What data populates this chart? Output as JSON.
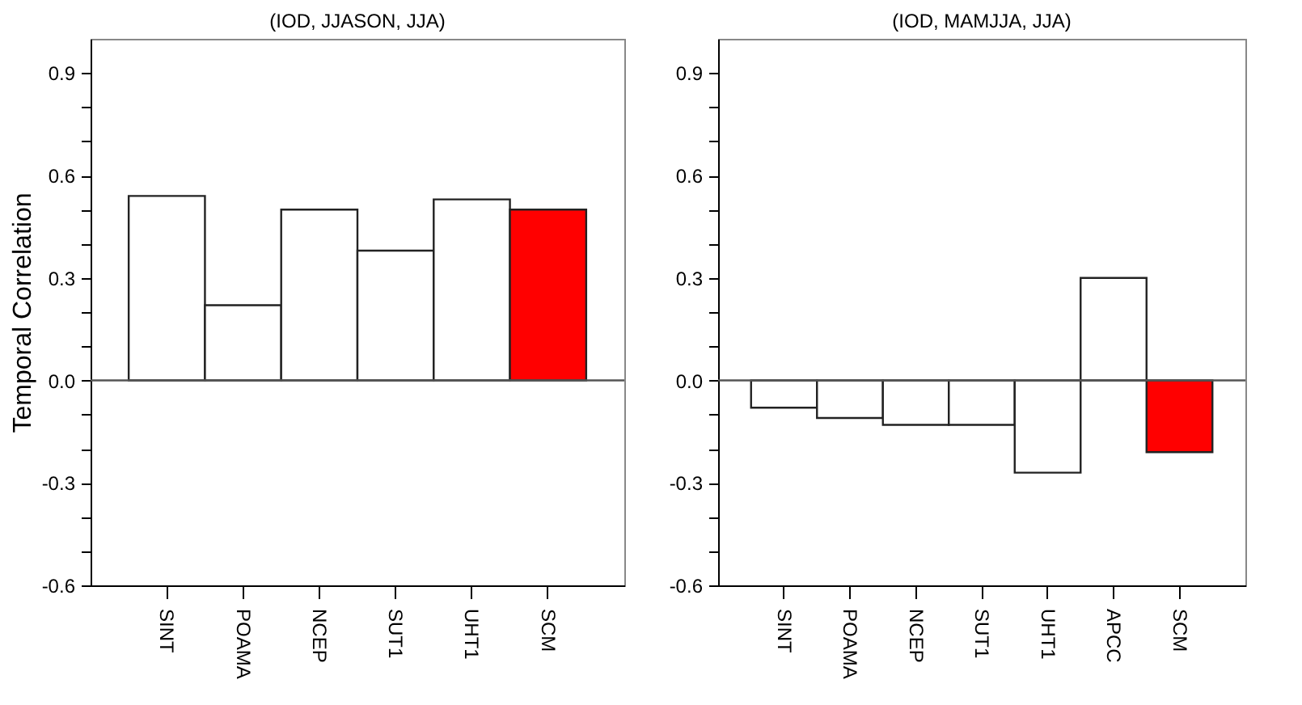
{
  "chart_data": [
    {
      "type": "bar",
      "title": "(IOD, JJASON, JJA)",
      "ylabel": "Temporal Correlation",
      "categories": [
        "SINT",
        "POAMA",
        "NCEP",
        "SUT1",
        "UHT1",
        "SCM"
      ],
      "values": [
        0.54,
        0.22,
        0.5,
        0.38,
        0.53,
        0.5
      ],
      "colors": [
        "#ffffff",
        "#ffffff",
        "#ffffff",
        "#ffffff",
        "#ffffff",
        "#ff0000"
      ],
      "ylim": [
        -0.6,
        1.0
      ],
      "yticks": [
        -0.6,
        {
          "value": -0.5,
          "label": null
        },
        {
          "value": -0.4,
          "label": null
        },
        -0.3,
        {
          "value": -0.2,
          "label": null
        },
        {
          "value": -0.1,
          "label": null
        },
        {
          "value": 0,
          "label": "0.0"
        },
        {
          "value": 0.1,
          "label": null
        },
        {
          "value": 0.2,
          "label": null
        },
        0.3,
        {
          "value": 0.4,
          "label": null
        },
        {
          "value": 0.5,
          "label": null
        },
        0.6,
        {
          "value": 0.7,
          "label": null
        },
        {
          "value": 0.8,
          "label": null
        },
        0.9
      ],
      "ref_lines": [
        {
          "axis": "y",
          "value": 0
        }
      ]
    },
    {
      "type": "bar",
      "title": "(IOD, MAMJJA, JJA)",
      "categories": [
        "SINT",
        "POAMA",
        "NCEP",
        "SUT1",
        "UHT1",
        "APCC",
        "SCM"
      ],
      "values": [
        -0.08,
        -0.11,
        -0.13,
        -0.13,
        -0.27,
        0.3,
        -0.21
      ],
      "colors": [
        "#ffffff",
        "#ffffff",
        "#ffffff",
        "#ffffff",
        "#ffffff",
        "#ffffff",
        "#ff0000"
      ],
      "ylim": [
        -0.6,
        1.0
      ],
      "yticks": [
        -0.6,
        {
          "value": -0.5,
          "label": null
        },
        {
          "value": -0.4,
          "label": null
        },
        -0.3,
        {
          "value": -0.2,
          "label": null
        },
        {
          "value": -0.1,
          "label": null
        },
        {
          "value": 0,
          "label": "0.0"
        },
        {
          "value": 0.1,
          "label": null
        },
        {
          "value": 0.2,
          "label": null
        },
        0.3,
        {
          "value": 0.4,
          "label": null
        },
        {
          "value": 0.5,
          "label": null
        },
        0.6,
        {
          "value": 0.7,
          "label": null
        },
        {
          "value": 0.8,
          "label": null
        },
        0.9
      ],
      "ref_lines": [
        {
          "axis": "y",
          "value": 0
        }
      ]
    }
  ]
}
